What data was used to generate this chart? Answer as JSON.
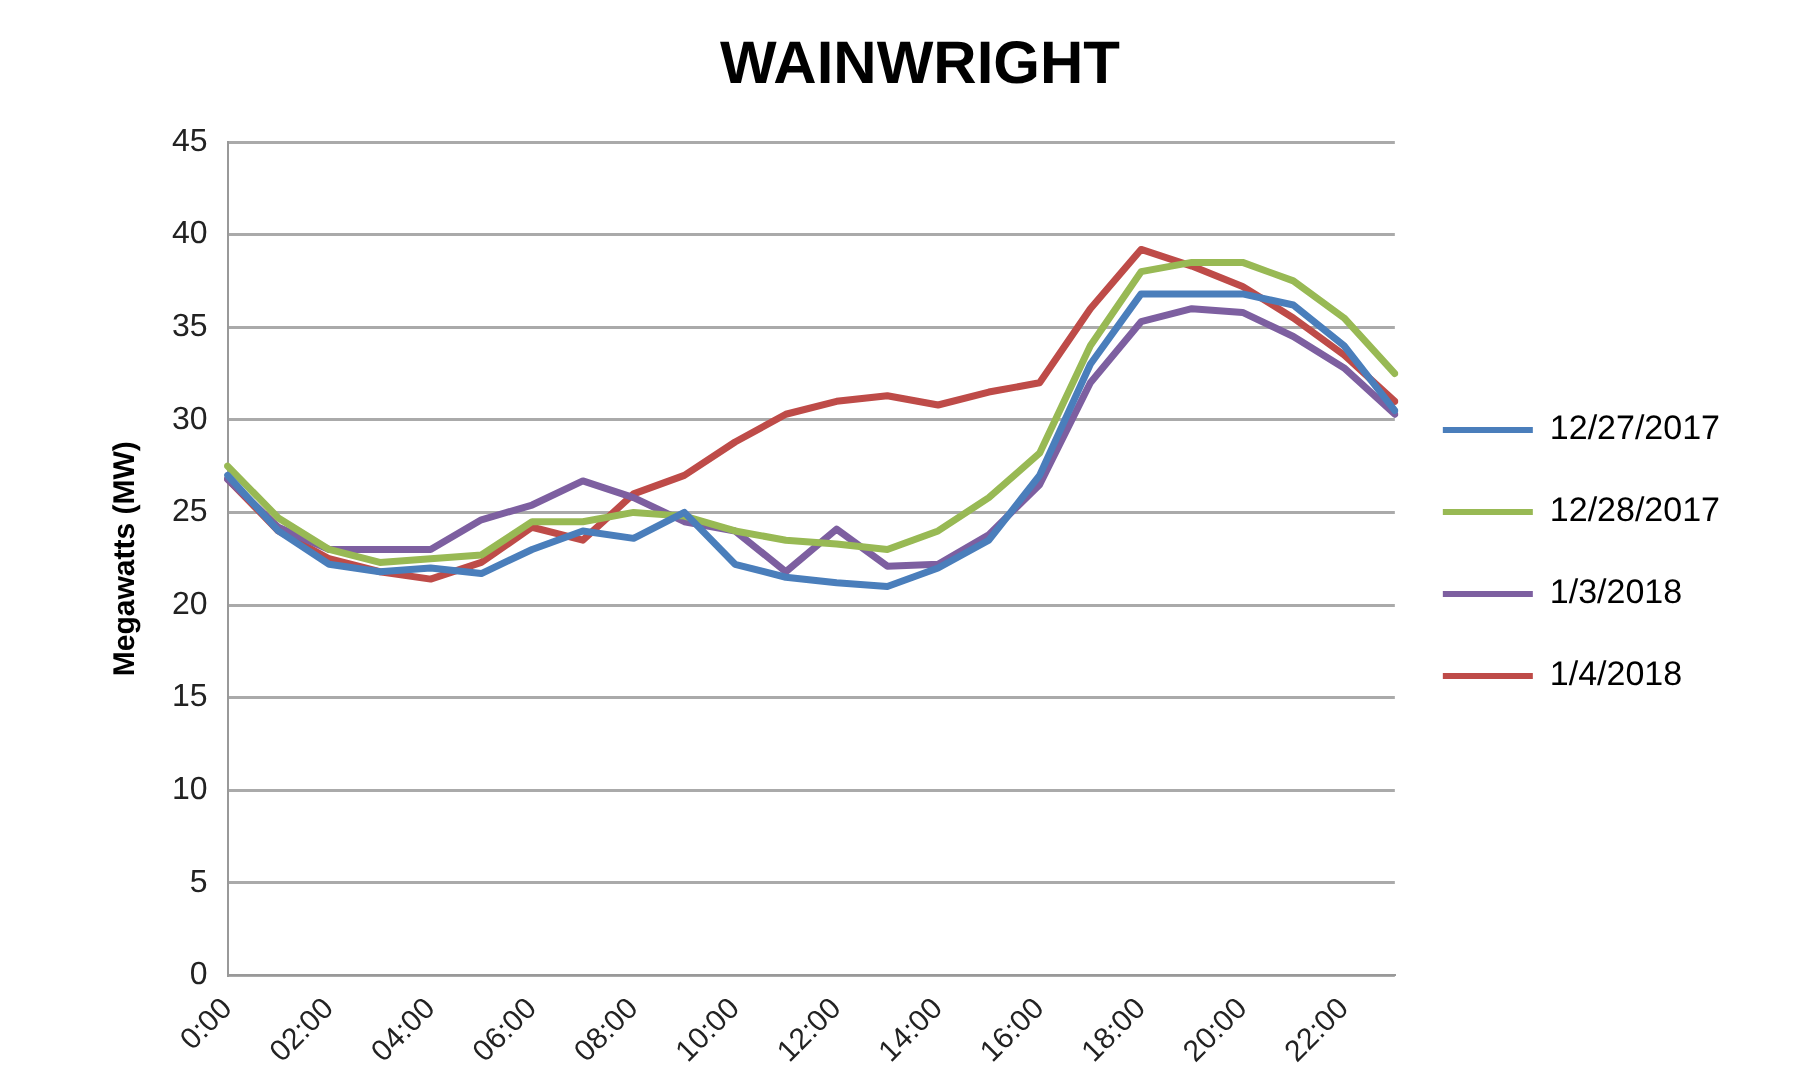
{
  "chart_data": {
    "type": "line",
    "title": "WAINWRIGHT",
    "ylabel": "Megawatts (MW)",
    "categories": [
      "0:00",
      null,
      "02:00",
      null,
      "04:00",
      null,
      "06:00",
      null,
      "08:00",
      null,
      "10:00",
      null,
      "12:00",
      null,
      "14:00",
      null,
      "16:00",
      null,
      "18:00",
      null,
      "20:00",
      null,
      "22:00",
      null
    ],
    "series": [
      {
        "name": "12/27/2017",
        "color": "#4a7ebb",
        "values": [
          27,
          24,
          22.2,
          21.8,
          22,
          21.7,
          23,
          24,
          23.6,
          25,
          22.2,
          21.5,
          21.2,
          21,
          22,
          23.5,
          27,
          33,
          36.8,
          36.8,
          36.8,
          36.2,
          34,
          30.5
        ]
      },
      {
        "name": "12/28/2017",
        "color": "#98b954",
        "values": [
          27.5,
          24.7,
          23,
          22.3,
          22.5,
          22.7,
          24.5,
          24.5,
          25,
          24.8,
          24,
          23.5,
          23.3,
          23,
          24,
          25.8,
          28.2,
          34,
          38,
          38.5,
          38.5,
          37.5,
          35.5,
          32.5
        ]
      },
      {
        "name": "1/3/2018",
        "color": "#7d5fa0",
        "values": [
          26.8,
          24.2,
          23,
          23,
          23,
          24.6,
          25.4,
          26.7,
          25.8,
          24.5,
          24,
          21.8,
          24.1,
          22.1,
          22.2,
          23.8,
          26.5,
          32,
          35.3,
          36,
          35.8,
          34.5,
          32.8,
          30.3
        ]
      },
      {
        "name": "1/4/2018",
        "color": "#be4b48",
        "values": [
          26.8,
          24,
          22.5,
          21.8,
          21.4,
          22.3,
          24.2,
          23.5,
          26,
          27,
          28.8,
          30.3,
          31,
          31.3,
          30.8,
          31.5,
          32,
          36,
          39.2,
          38.3,
          37.2,
          35.5,
          33.5,
          31
        ]
      }
    ],
    "ylim": [
      0,
      45
    ],
    "yticks": [
      0,
      5,
      10,
      15,
      20,
      25,
      30,
      35,
      40,
      45
    ],
    "grid": "y",
    "legend": "right",
    "marker": "none",
    "line_style": "solid"
  }
}
